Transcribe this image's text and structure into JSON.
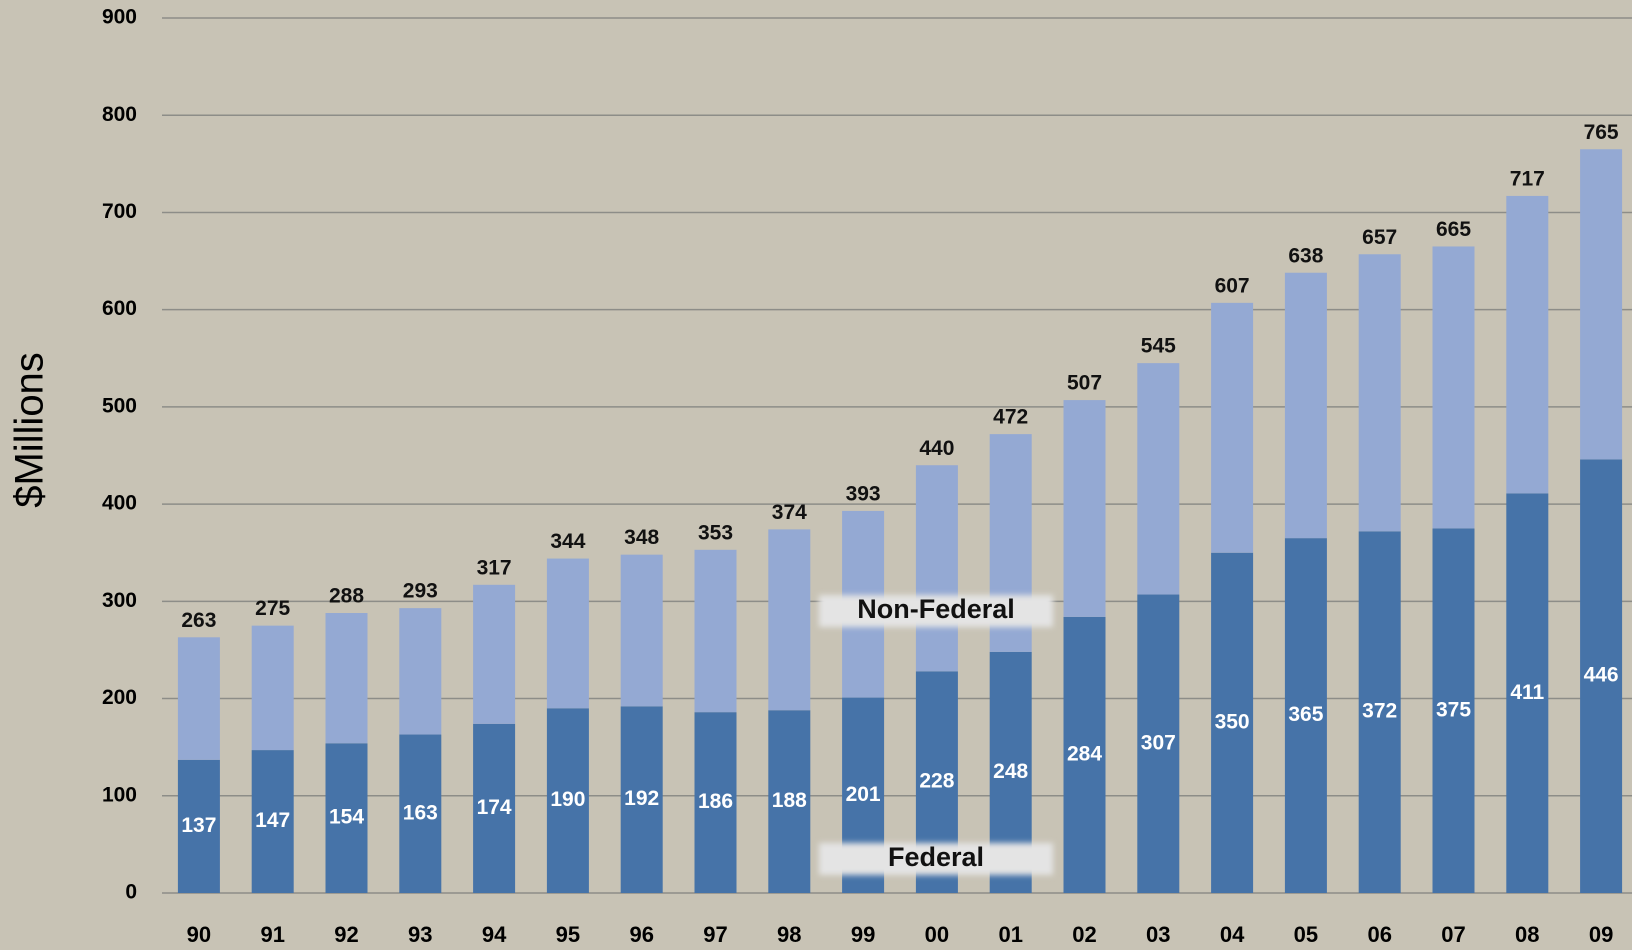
{
  "chart_data": {
    "type": "stacked_bar",
    "y_label": "$Millions",
    "categories": [
      "90",
      "91",
      "92",
      "93",
      "94",
      "95",
      "96",
      "97",
      "98",
      "99",
      "00",
      "01",
      "02",
      "03",
      "04",
      "05",
      "06",
      "07",
      "08",
      "09"
    ],
    "series": [
      {
        "name": "Federal",
        "color": "#4673a8",
        "values": [
          137,
          147,
          154,
          163,
          174,
          190,
          192,
          186,
          188,
          201,
          228,
          248,
          284,
          307,
          350,
          365,
          372,
          375,
          411,
          446
        ]
      },
      {
        "name": "Non-Federal",
        "color": "#94a9d3",
        "values": [
          126,
          128,
          134,
          130,
          143,
          154,
          156,
          167,
          186,
          192,
          212,
          224,
          223,
          238,
          257,
          273,
          285,
          290,
          306,
          319
        ]
      }
    ],
    "totals": [
      263,
      275,
      288,
      293,
      317,
      344,
      348,
      353,
      374,
      393,
      440,
      472,
      507,
      545,
      607,
      638,
      657,
      665,
      717,
      765
    ],
    "ylim": [
      0,
      900
    ],
    "yticks": [
      0,
      100,
      200,
      300,
      400,
      500,
      600,
      700,
      800,
      900
    ],
    "grid": true
  }
}
